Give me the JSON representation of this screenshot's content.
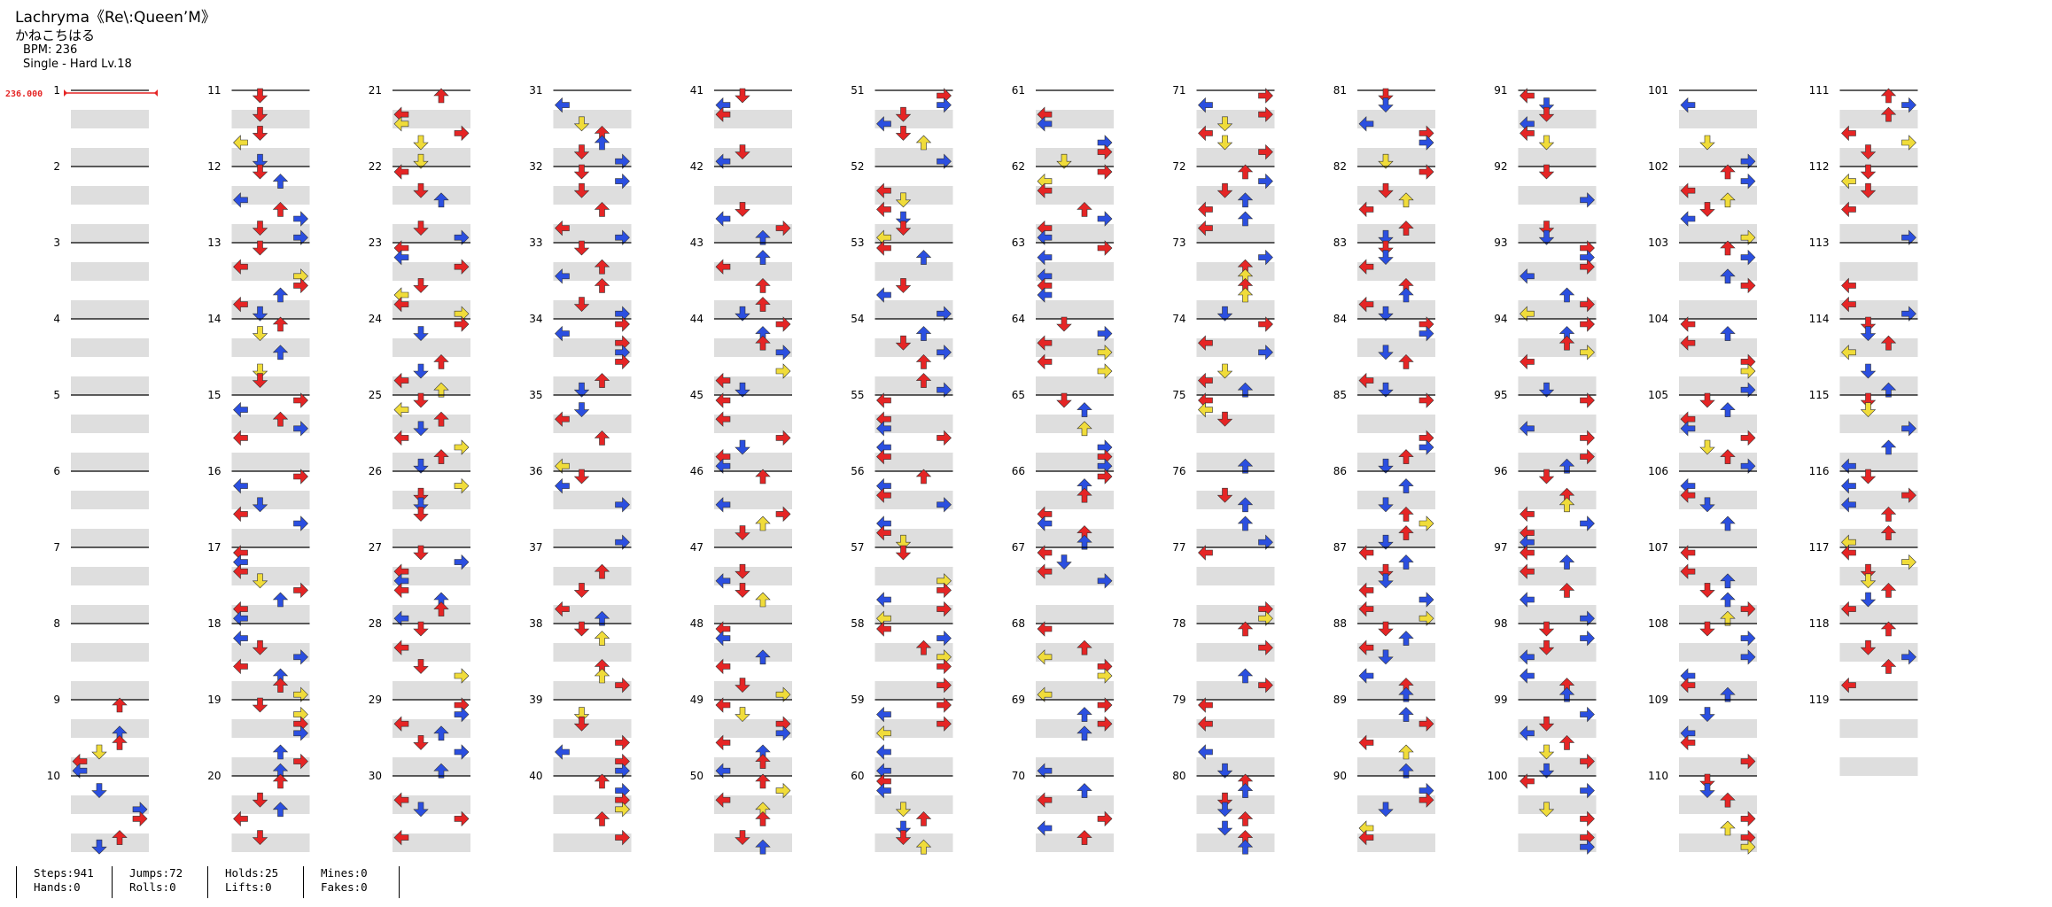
{
  "header": {
    "title": "Lachryma《Re\\:Queen’M》",
    "artist": "かねこちはる",
    "bpm": "BPM: 236",
    "difficulty": "Single - Hard  Lv.18"
  },
  "bpm_marker": "236.000",
  "measures": {
    "first": 1,
    "last": 119,
    "per_column": 10
  },
  "stats": [
    {
      "top": "Steps:941",
      "bottom": "Hands:0"
    },
    {
      "top": "Jumps:72",
      "bottom": "Rolls:0"
    },
    {
      "top": "Holds:25",
      "bottom": "Lifts:0"
    },
    {
      "top": "Mines:0",
      "bottom": "Fakes:0"
    }
  ],
  "colors": {
    "quarter": "#e52525",
    "eighth": "#2b4fe0",
    "sixteenth": "#f0dc3a",
    "twelfth": "#b53be8",
    "hold": "#8fe88f",
    "band": "#dedede"
  }
}
